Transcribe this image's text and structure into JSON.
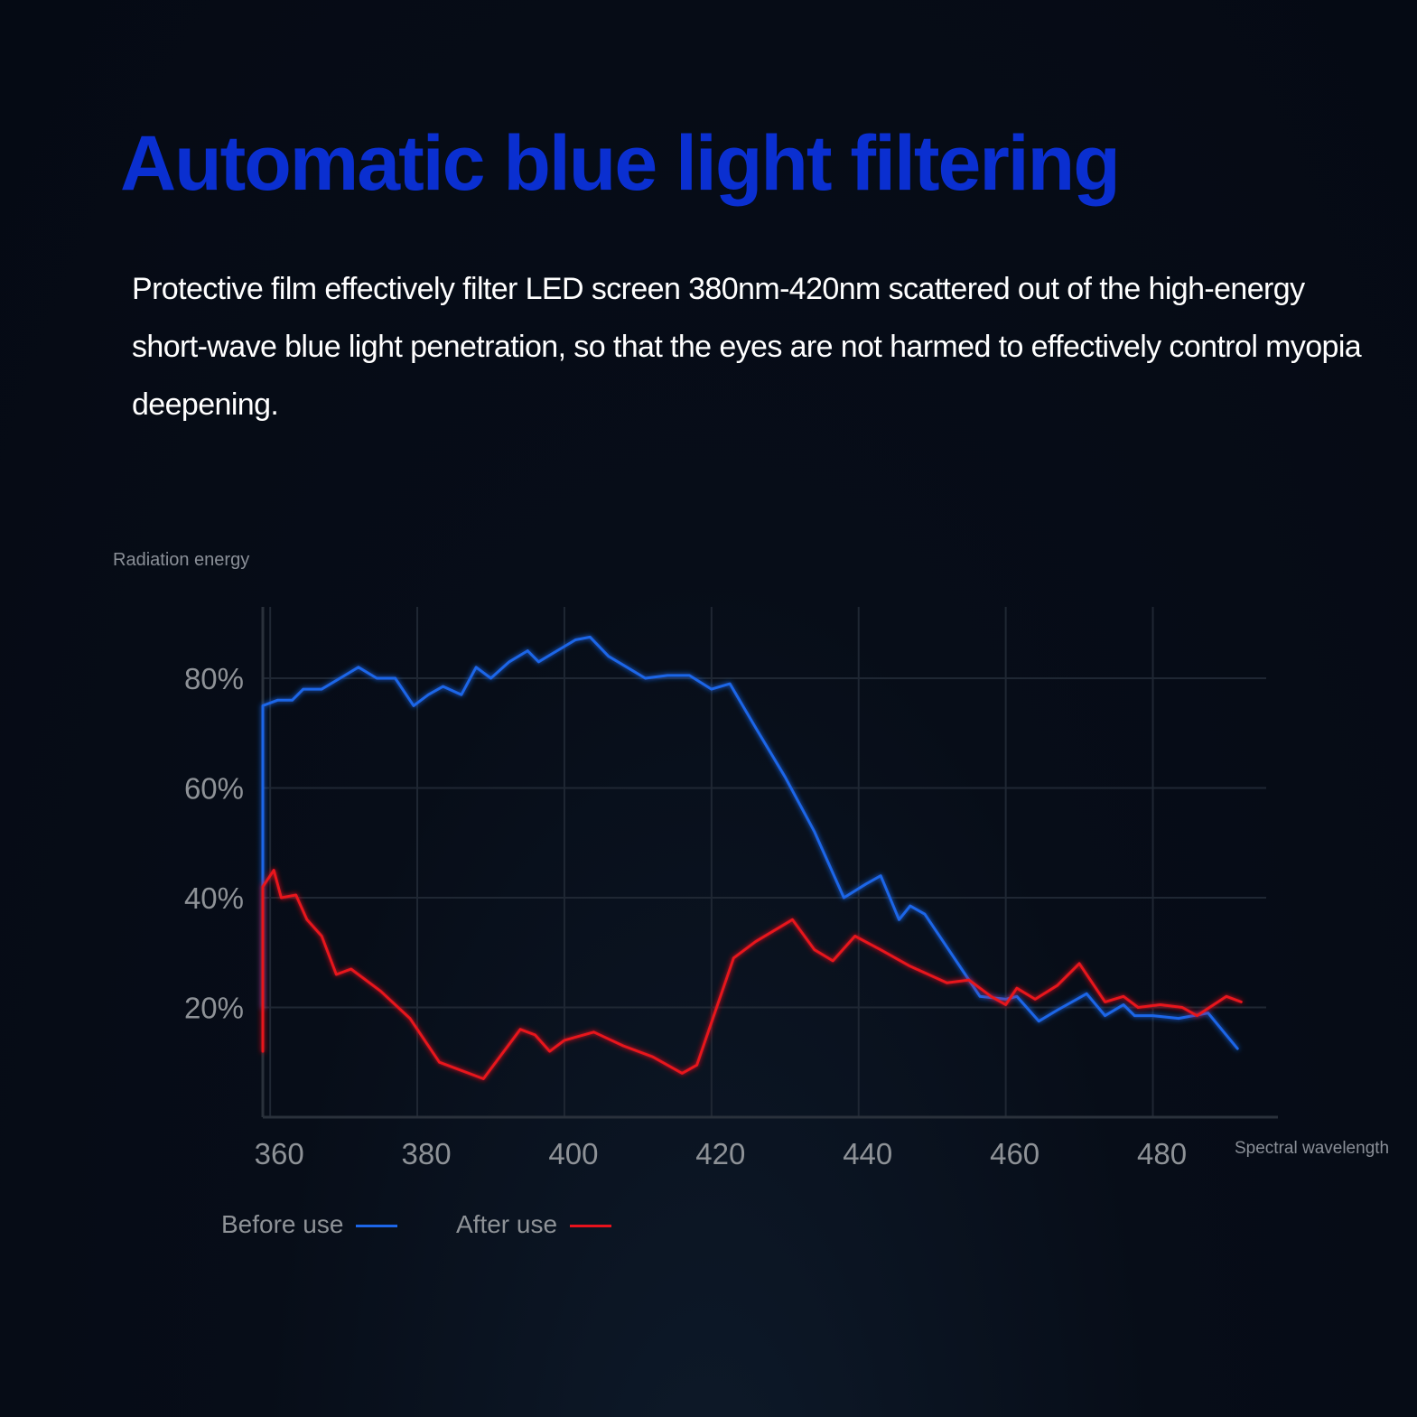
{
  "header": {
    "title": "Automatic blue light filtering",
    "title_color": "#0a2fd0",
    "description": "Protective film effectively filter LED screen 380nm-420nm scattered out of the high-energy short-wave blue light penetration, so that the eyes are not harmed to effectively control myopia deepening."
  },
  "chart_data": {
    "type": "line",
    "ylabel": "Radiation energy",
    "xlabel": "Spectral wavelength",
    "xlim": [
      359,
      497
    ],
    "ylim": [
      0,
      93
    ],
    "x_ticks": [
      360,
      380,
      400,
      420,
      440,
      460,
      480
    ],
    "y_ticks": [
      20,
      40,
      60,
      80
    ],
    "y_tick_labels": [
      "20%",
      "40%",
      "60%",
      "80%"
    ],
    "grid": true,
    "legend": "bottom",
    "series": [
      {
        "name": "Before use",
        "color": "#1d66e8",
        "points": [
          [
            359,
            20
          ],
          [
            359,
            75
          ],
          [
            361,
            76
          ],
          [
            363,
            76
          ],
          [
            364.5,
            78
          ],
          [
            367,
            78
          ],
          [
            369.5,
            80
          ],
          [
            372,
            82
          ],
          [
            374.5,
            80
          ],
          [
            377,
            80
          ],
          [
            379.5,
            75
          ],
          [
            381.5,
            77
          ],
          [
            383.5,
            78.5
          ],
          [
            386,
            77
          ],
          [
            388,
            82
          ],
          [
            390,
            80
          ],
          [
            392.5,
            83
          ],
          [
            395,
            85
          ],
          [
            396.5,
            83
          ],
          [
            399,
            85
          ],
          [
            401.5,
            87
          ],
          [
            403.5,
            87.5
          ],
          [
            406,
            84
          ],
          [
            408.5,
            82
          ],
          [
            411,
            80
          ],
          [
            414,
            80.5
          ],
          [
            417,
            80.5
          ],
          [
            420,
            78
          ],
          [
            422.5,
            79
          ],
          [
            426,
            71
          ],
          [
            430,
            62
          ],
          [
            434,
            52
          ],
          [
            438,
            40
          ],
          [
            441,
            42.5
          ],
          [
            443,
            44
          ],
          [
            445.5,
            36
          ],
          [
            447,
            38.5
          ],
          [
            449,
            37
          ],
          [
            452,
            31
          ],
          [
            454.5,
            26
          ],
          [
            456.5,
            22
          ],
          [
            460,
            21.5
          ],
          [
            461.5,
            22
          ],
          [
            464.5,
            17.5
          ],
          [
            467,
            19.5
          ],
          [
            471,
            22.5
          ],
          [
            473.5,
            18.5
          ],
          [
            476,
            20.5
          ],
          [
            477.5,
            18.5
          ],
          [
            480,
            18.5
          ],
          [
            483.5,
            18
          ],
          [
            487.5,
            19
          ],
          [
            491.5,
            12.5
          ]
        ]
      },
      {
        "name": "After use",
        "color": "#e8121c",
        "points": [
          [
            359,
            12
          ],
          [
            359,
            42
          ],
          [
            360.5,
            45
          ],
          [
            361.5,
            40
          ],
          [
            363.5,
            40.5
          ],
          [
            365,
            36
          ],
          [
            367,
            33
          ],
          [
            369,
            26
          ],
          [
            371,
            27
          ],
          [
            375,
            23
          ],
          [
            379,
            18
          ],
          [
            383,
            10
          ],
          [
            389,
            7
          ],
          [
            394,
            16
          ],
          [
            396,
            15
          ],
          [
            398,
            12
          ],
          [
            400,
            14
          ],
          [
            404,
            15.5
          ],
          [
            408,
            13
          ],
          [
            412,
            11
          ],
          [
            416,
            8
          ],
          [
            418,
            9.5
          ],
          [
            423,
            29
          ],
          [
            426,
            32
          ],
          [
            431,
            36
          ],
          [
            434,
            30.5
          ],
          [
            436.5,
            28.5
          ],
          [
            439.5,
            33
          ],
          [
            443,
            30.5
          ],
          [
            447,
            27.5
          ],
          [
            452,
            24.5
          ],
          [
            455,
            25
          ],
          [
            458,
            22
          ],
          [
            460,
            20.5
          ],
          [
            461.5,
            23.5
          ],
          [
            464,
            21.5
          ],
          [
            467,
            24
          ],
          [
            470,
            28
          ],
          [
            473.5,
            21
          ],
          [
            476,
            22
          ],
          [
            478,
            20
          ],
          [
            481,
            20.5
          ],
          [
            484,
            20
          ],
          [
            486,
            18.5
          ],
          [
            490,
            22
          ],
          [
            492,
            21
          ]
        ]
      }
    ]
  }
}
